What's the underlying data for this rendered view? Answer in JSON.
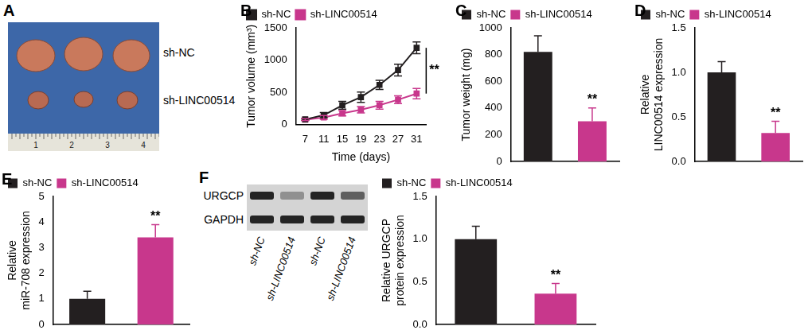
{
  "photo": {
    "panel": "A",
    "labels": [
      "sh-NC",
      "sh-LINC00514"
    ],
    "ruler": [
      "1",
      "2",
      "3",
      "4"
    ]
  },
  "chart_data": [
    {
      "panel": "B",
      "type": "line",
      "ylabel": "Tumor volume (mm³)",
      "xlabel": "Time (days)",
      "x": [
        7,
        11,
        15,
        19,
        23,
        27,
        31
      ],
      "xlim": [
        5,
        33
      ],
      "xticks": [
        7,
        11,
        15,
        19,
        23,
        27,
        31
      ],
      "ylim": [
        0,
        1500
      ],
      "yticks": [
        0,
        500,
        1000,
        1500
      ],
      "grid": false,
      "legend": "top-left",
      "series": [
        {
          "name": "sh-NC",
          "color": "#231f20",
          "marker": "square",
          "values": [
            80,
            145,
            300,
            425,
            615,
            845,
            1190
          ],
          "errors": [
            15,
            40,
            60,
            80,
            70,
            90,
            90
          ]
        },
        {
          "name": "sh-LINC00514",
          "color": "#c8378c",
          "marker": "square",
          "values": [
            75,
            110,
            175,
            230,
            300,
            385,
            480
          ],
          "errors": [
            15,
            30,
            40,
            50,
            60,
            60,
            80
          ]
        }
      ],
      "annotations": [
        {
          "x": 31,
          "text": "**"
        }
      ]
    },
    {
      "panel": "C",
      "type": "bar",
      "ylabel": "Tumor weight (mg)",
      "categories": [
        "sh-NC",
        "sh-LINC00514"
      ],
      "values": [
        820,
        300
      ],
      "errors": [
        120,
        100
      ],
      "colors": [
        "#231f20",
        "#c8378c"
      ],
      "ylim": [
        0,
        1000
      ],
      "yticks": [
        0,
        200,
        400,
        600,
        800,
        1000
      ],
      "grid": false,
      "legend": "top-left",
      "tick_labels": "y",
      "annotations": [
        {
          "category": "sh-LINC00514",
          "text": "**"
        }
      ]
    },
    {
      "panel": "D",
      "type": "bar",
      "ylabel": [
        "Relative",
        "LINC00514 expression"
      ],
      "categories": [
        "sh-NC",
        "sh-LINC00514"
      ],
      "values": [
        1.0,
        0.32
      ],
      "errors": [
        0.12,
        0.13
      ],
      "colors": [
        "#231f20",
        "#c8378c"
      ],
      "ylim": [
        0,
        1.5
      ],
      "yticks": [
        {
          "value": 0,
          "label": "0.0"
        },
        0.5,
        {
          "value": 1,
          "label": "1.0"
        },
        1.5
      ],
      "grid": false,
      "legend": "top-left",
      "tick_labels": "y",
      "annotations": [
        {
          "category": "sh-LINC00514",
          "text": "**"
        }
      ]
    },
    {
      "panel": "E",
      "type": "bar",
      "ylabel": [
        "Relative",
        "miR-708 expression"
      ],
      "categories": [
        "sh-NC",
        "sh-LINC00514"
      ],
      "values": [
        1.0,
        3.4
      ],
      "errors": [
        0.3,
        0.5
      ],
      "colors": [
        "#231f20",
        "#c8378c"
      ],
      "ylim": [
        0,
        5
      ],
      "yticks": [
        0,
        1,
        2,
        3,
        4,
        5
      ],
      "grid": false,
      "legend": "top-left",
      "tick_labels": "y",
      "annotations": [
        {
          "category": "sh-LINC00514",
          "text": "**"
        }
      ]
    },
    {
      "type": "bar",
      "ylabel": [
        "Relative URGCP",
        "protein expression"
      ],
      "categories": [
        "sh-NC",
        "sh-LINC00514"
      ],
      "values": [
        1.0,
        0.36
      ],
      "errors": [
        0.15,
        0.12
      ],
      "colors": [
        "#231f20",
        "#c8378c"
      ],
      "ylim": [
        0,
        1.5
      ],
      "yticks": [
        {
          "value": 0,
          "label": "0.0"
        },
        0.5,
        {
          "value": 1,
          "label": "1.0"
        },
        1.5
      ],
      "grid": false,
      "legend": "top-left",
      "tick_labels": "y",
      "annotations": [
        {
          "category": "sh-LINC00514",
          "text": "**"
        }
      ]
    }
  ],
  "blot": {
    "panel": "F",
    "rows": [
      "URGCP",
      "GAPDH"
    ],
    "lanes": [
      "sh-NC",
      "sh-LINC00514",
      "sh-NC",
      "sh-LINC00514"
    ],
    "band_intensity": [
      [
        0.9,
        0.35,
        0.9,
        0.6
      ],
      [
        0.9,
        0.9,
        0.9,
        0.9
      ]
    ]
  }
}
